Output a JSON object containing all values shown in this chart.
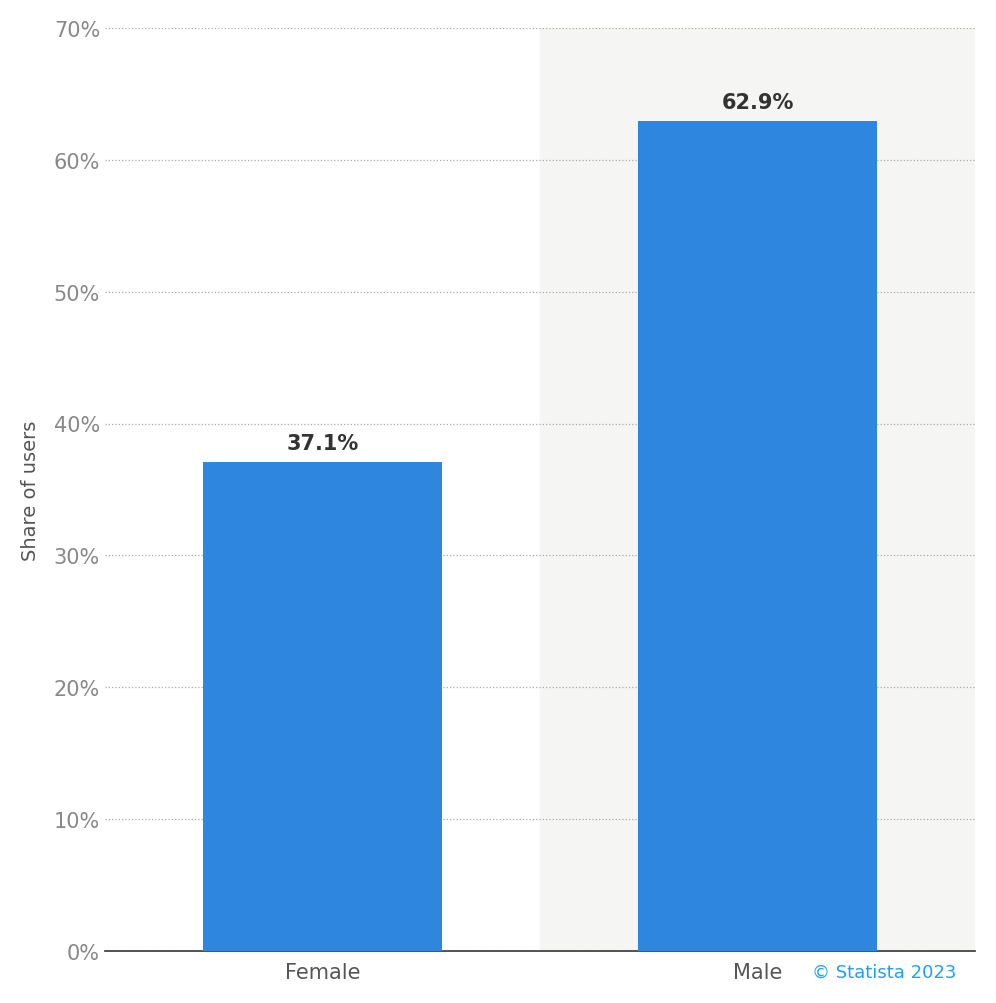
{
  "categories": [
    "Female",
    "Male"
  ],
  "values": [
    37.1,
    62.9
  ],
  "bar_color": "#2e86de",
  "bar_width": 0.55,
  "labels": [
    "37.1%",
    "62.9%"
  ],
  "ylabel": "Share of users",
  "ylim": [
    0,
    70
  ],
  "yticks": [
    0,
    10,
    20,
    30,
    40,
    50,
    60,
    70
  ],
  "ytick_labels": [
    "0%",
    "10%",
    "20%",
    "30%",
    "40%",
    "50%",
    "60%",
    "70%"
  ],
  "background_color": "#ffffff",
  "male_bg_color": "#f5f5f3",
  "grid_color": "#aaaaaa",
  "label_fontsize": 15,
  "tick_fontsize": 15,
  "ylabel_fontsize": 14,
  "annotation_fontsize": 15,
  "copyright_text": "© Statista 2023",
  "copyright_color": "#1da1f2",
  "copyright_fontsize": 13
}
